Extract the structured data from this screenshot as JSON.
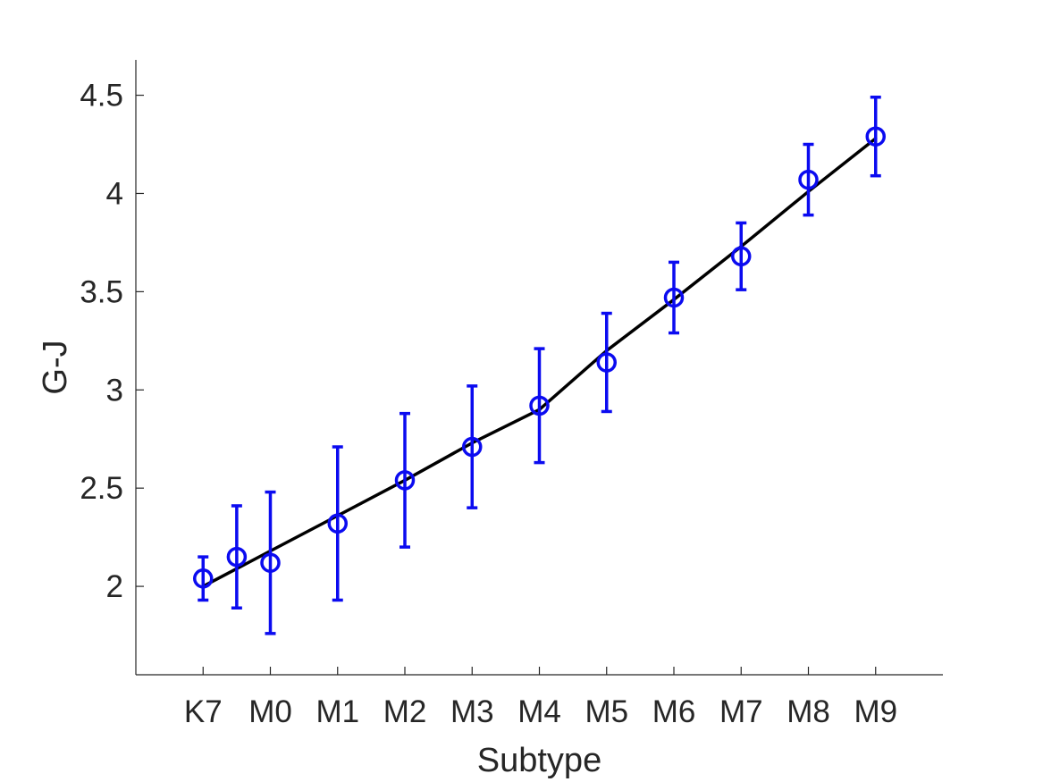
{
  "chart_data": {
    "type": "scatter",
    "title": "",
    "xlabel": "Subtype",
    "ylabel": "G-J",
    "x_tick_positions": [
      0,
      1,
      2,
      3,
      4,
      5,
      6,
      7,
      8,
      9,
      10
    ],
    "x_tick_labels": [
      "K7",
      "M0",
      "M1",
      "M2",
      "M3",
      "M4",
      "M5",
      "M6",
      "M7",
      "M8",
      "M9"
    ],
    "xlim": [
      -1,
      11
    ],
    "ylim": [
      1.55,
      4.68
    ],
    "y_ticks": [
      2,
      2.5,
      3,
      3.5,
      4,
      4.5
    ],
    "y_tick_labels": [
      "2",
      "2.5",
      "3",
      "3.5",
      "4",
      "4.5"
    ],
    "grid": false,
    "colors": {
      "points": "#0b0bf0",
      "fit_line": "#000000",
      "axes": "#262626"
    },
    "series": [
      {
        "kind": "points_with_errorbars",
        "marker": "circle",
        "x": [
          0,
          0.5,
          1,
          2,
          3,
          4,
          5,
          6,
          7,
          8,
          9,
          10
        ],
        "y": [
          2.04,
          2.15,
          2.12,
          2.32,
          2.54,
          2.71,
          2.92,
          3.14,
          3.47,
          3.68,
          4.07,
          4.29
        ],
        "yerr": [
          0.11,
          0.26,
          0.36,
          0.39,
          0.34,
          0.31,
          0.29,
          0.25,
          0.18,
          0.17,
          0.18,
          0.2
        ]
      },
      {
        "kind": "line",
        "x": [
          0,
          1,
          2,
          3,
          4,
          5,
          6,
          7,
          8,
          9,
          10
        ],
        "y": [
          2.0,
          2.18,
          2.36,
          2.54,
          2.73,
          2.9,
          3.2,
          3.46,
          3.73,
          4.01,
          4.28
        ]
      }
    ]
  }
}
